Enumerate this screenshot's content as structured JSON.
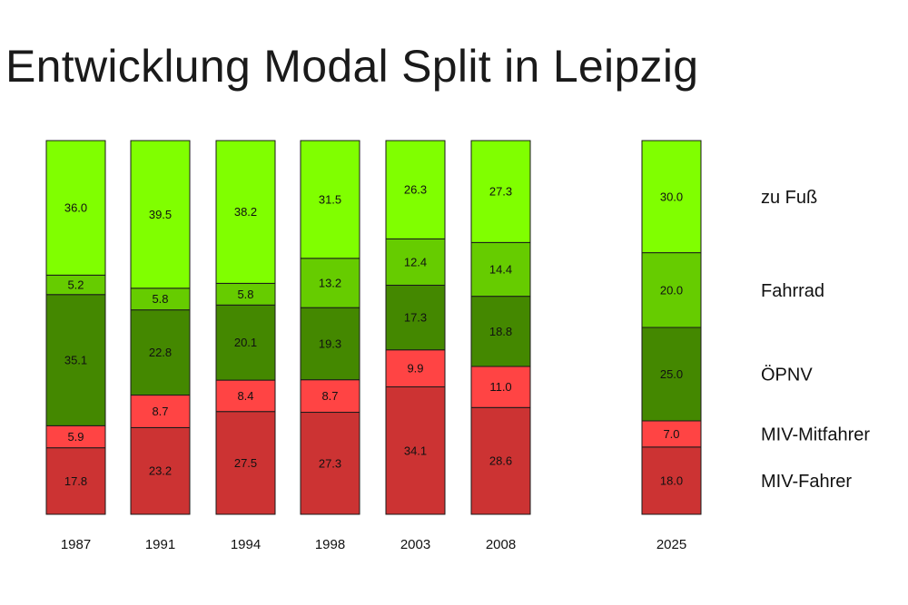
{
  "title": "Entwicklung Modal Split in Leipzig",
  "chart_data": {
    "type": "bar",
    "stacked": true,
    "categories": [
      "1987",
      "1991",
      "1994",
      "1998",
      "2003",
      "2008",
      "2025"
    ],
    "series": [
      {
        "name": "MIV-Fahrer",
        "color": "#cc3333",
        "values": [
          17.8,
          23.2,
          27.5,
          27.3,
          34.1,
          28.6,
          18.0
        ]
      },
      {
        "name": "MIV-Mitfahrer",
        "color": "#ff4444",
        "values": [
          5.9,
          8.7,
          8.4,
          8.7,
          9.9,
          11.0,
          7.0
        ]
      },
      {
        "name": "ÖPNV",
        "color": "#448800",
        "values": [
          35.1,
          22.8,
          20.1,
          19.3,
          17.3,
          18.8,
          25.0
        ]
      },
      {
        "name": "Fahrrad",
        "color": "#66cc00",
        "values": [
          5.2,
          5.8,
          5.8,
          13.2,
          12.4,
          14.4,
          20.0
        ]
      },
      {
        "name": "zu Fuß",
        "color": "#80ff00",
        "values": [
          36.0,
          39.5,
          38.2,
          31.5,
          26.3,
          27.3,
          30.0
        ]
      }
    ],
    "ylim": [
      0,
      100
    ],
    "grid": false,
    "legend_placement": "right"
  }
}
